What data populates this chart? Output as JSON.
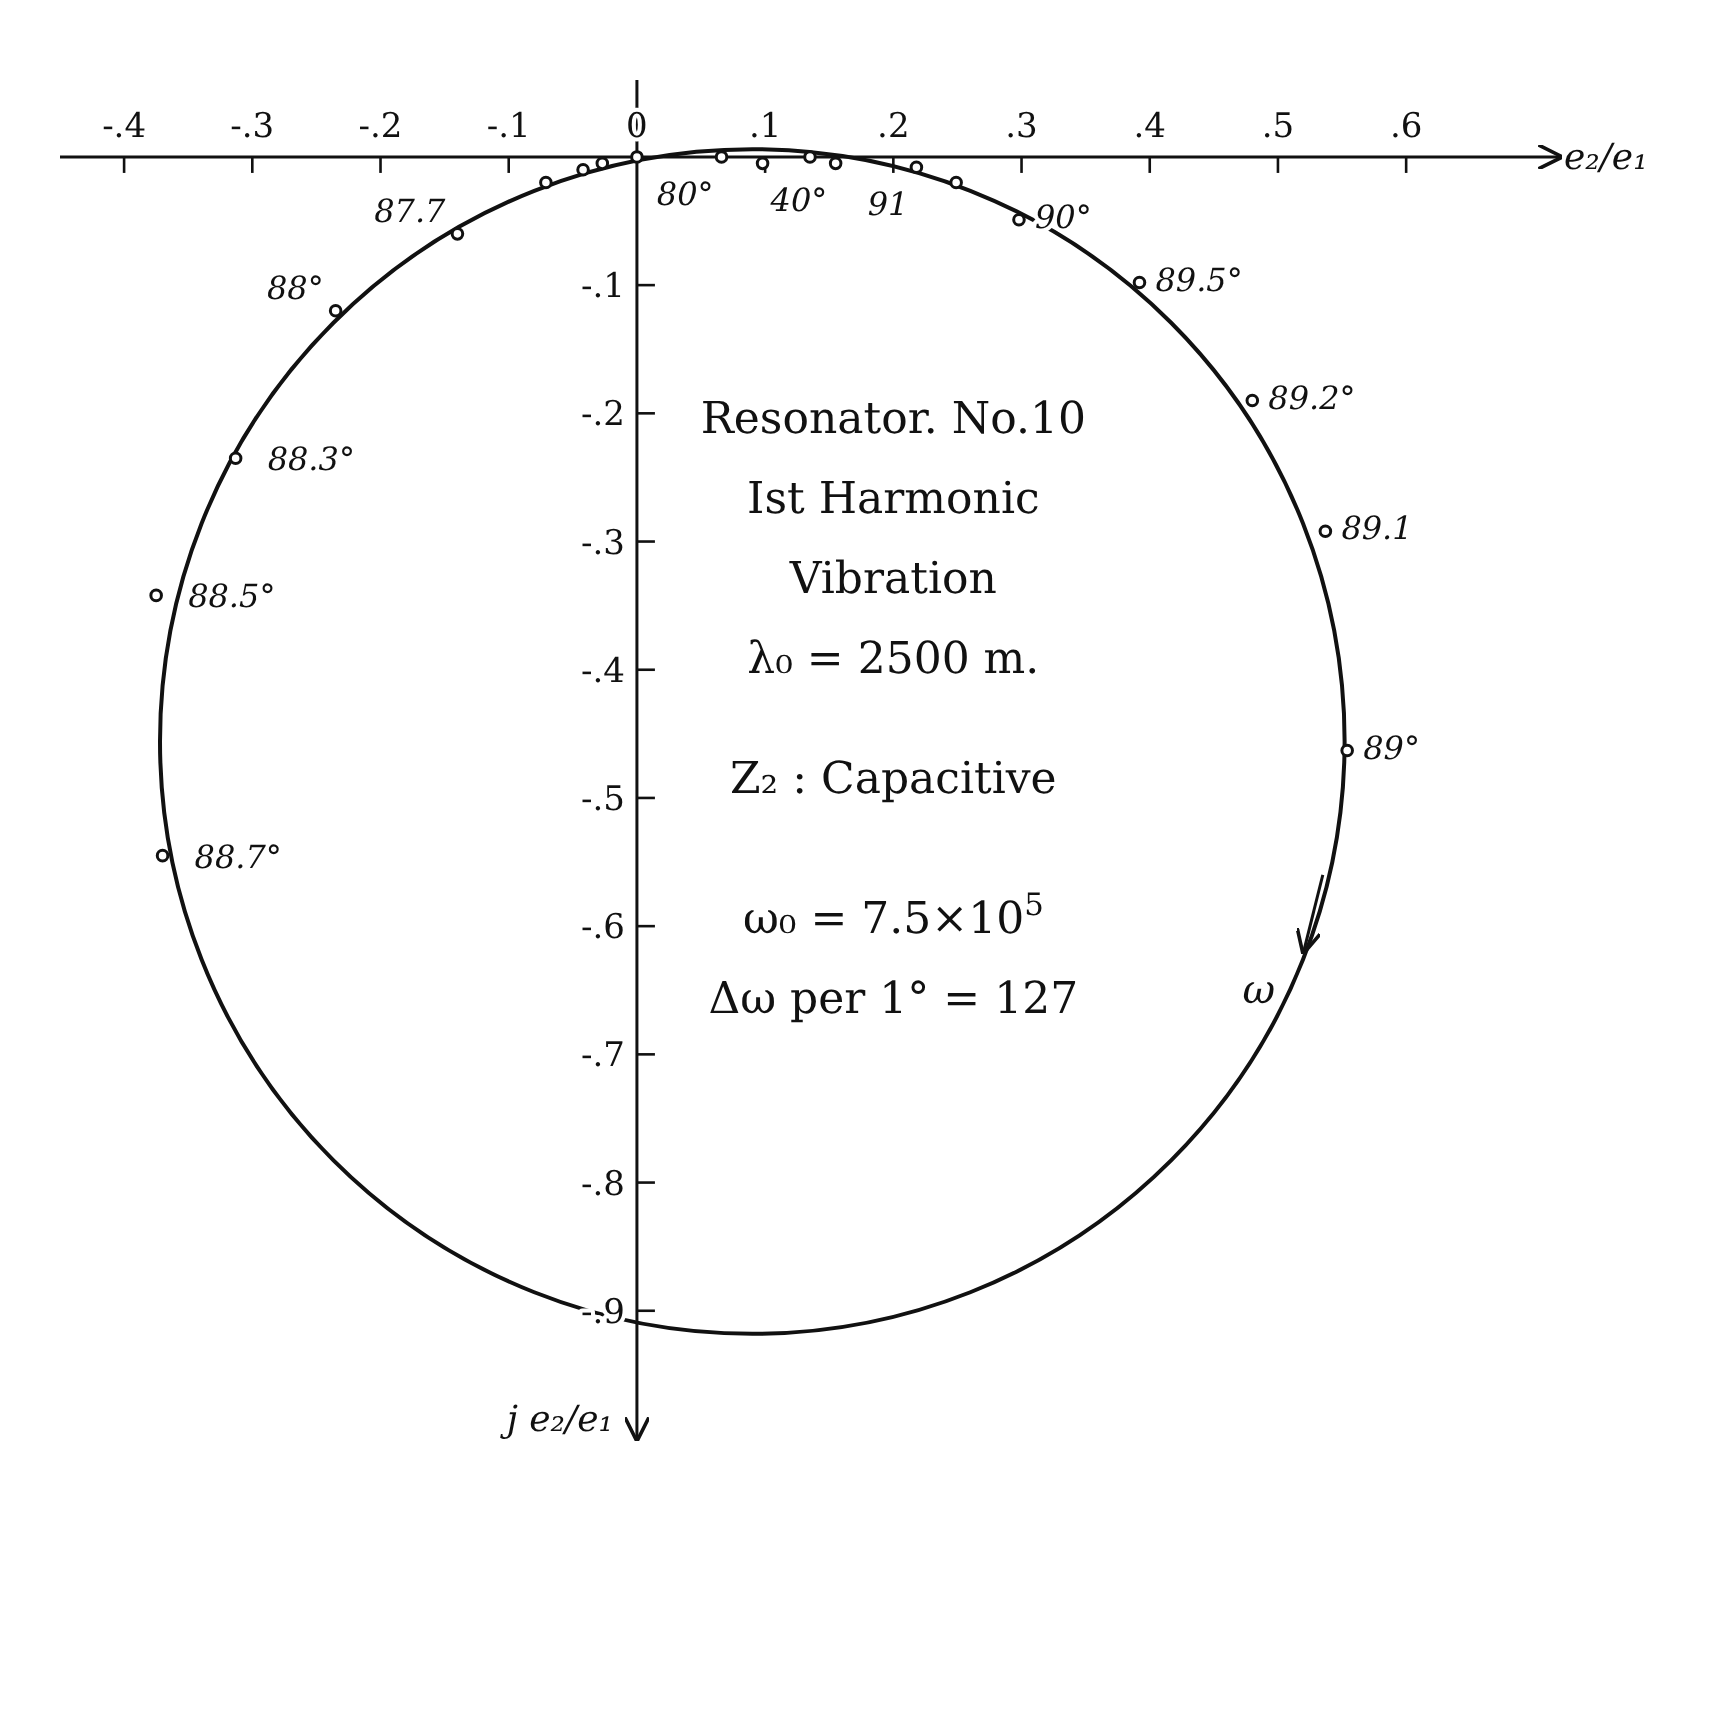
{
  "chart_data": {
    "type": "scatter",
    "xlabel": "e₂/e₁",
    "ylabel": "j e₂/e₁",
    "xlim": [
      -0.45,
      0.72
    ],
    "ylim": [
      -1.0,
      0.06
    ],
    "xticks": [
      {
        "value": -0.4,
        "label": "-.4"
      },
      {
        "value": -0.3,
        "label": "-.3"
      },
      {
        "value": -0.2,
        "label": "-.2"
      },
      {
        "value": -0.1,
        "label": "-.1"
      },
      0,
      {
        "value": 0.1,
        "label": ".1"
      },
      {
        "value": 0.2,
        "label": ".2"
      },
      {
        "value": 0.3,
        "label": ".3"
      },
      {
        "value": 0.4,
        "label": ".4"
      },
      {
        "value": 0.5,
        "label": ".5"
      },
      {
        "value": 0.6,
        "label": ".6"
      }
    ],
    "yticks": [
      {
        "value": -0.1,
        "label": "-.1"
      },
      {
        "value": -0.2,
        "label": "-.2"
      },
      {
        "value": -0.3,
        "label": "-.3"
      },
      {
        "value": -0.4,
        "label": "-.4"
      },
      {
        "value": -0.5,
        "label": "-.5"
      },
      {
        "value": -0.6,
        "label": "-.6"
      },
      {
        "value": -0.7,
        "label": "-.7"
      },
      {
        "value": -0.8,
        "label": "-.8"
      },
      {
        "value": -0.9,
        "label": "-.9"
      }
    ],
    "grid": false,
    "series": [
      {
        "color": "#111111",
        "marker": "circle",
        "x": [
          -0.375,
          -0.37,
          -0.313,
          -0.235,
          -0.14,
          -0.071,
          -0.042,
          -0.027,
          0,
          0.066,
          0.098,
          0.135,
          0.155,
          0.218,
          0.249,
          0.298,
          0.392,
          0.48,
          0.537,
          0.554
        ],
        "values": [
          -0.342,
          -0.545,
          -0.235,
          -0.12,
          -0.06,
          -0.02,
          -0.01,
          -0.005,
          0,
          0,
          -0.005,
          0,
          -0.005,
          -0.008,
          -0.02,
          -0.049,
          -0.098,
          -0.19,
          -0.292,
          -0.463
        ]
      }
    ],
    "annotations": [
      {
        "text": "87.7",
        "x": -0.14,
        "y": -0.06
      },
      {
        "text": "88°",
        "x": -0.235,
        "y": -0.12
      },
      {
        "text": "88.3°",
        "x": -0.313,
        "y": -0.235
      },
      {
        "text": "88.5°",
        "x": -0.375,
        "y": -0.342
      },
      {
        "text": "88.7°",
        "x": -0.37,
        "y": -0.545
      },
      {
        "text": "80°",
        "x": 0.066,
        "y": 0
      },
      {
        "text": "40°",
        "x": 0.098,
        "y": -0.005
      },
      {
        "text": "91",
        "x": 0.218,
        "y": -0.008
      },
      {
        "text": "90°",
        "x": 0.298,
        "y": -0.049
      },
      {
        "text": "89.5°",
        "x": 0.392,
        "y": -0.098
      },
      {
        "text": "89.2°",
        "x": 0.48,
        "y": -0.19
      },
      {
        "text": "89.1",
        "x": 0.537,
        "y": -0.292
      },
      {
        "text": "89°",
        "x": 0.554,
        "y": -0.463
      },
      "ω",
      "Resonator. No.10",
      "Ist Harmonic",
      "Vibration",
      "λ₀ = 2500 m.",
      "Z₂ : Capacitive",
      "ω₀ = 7.5×10$^{5}$",
      "Δω per 1° = 127"
    ]
  }
}
